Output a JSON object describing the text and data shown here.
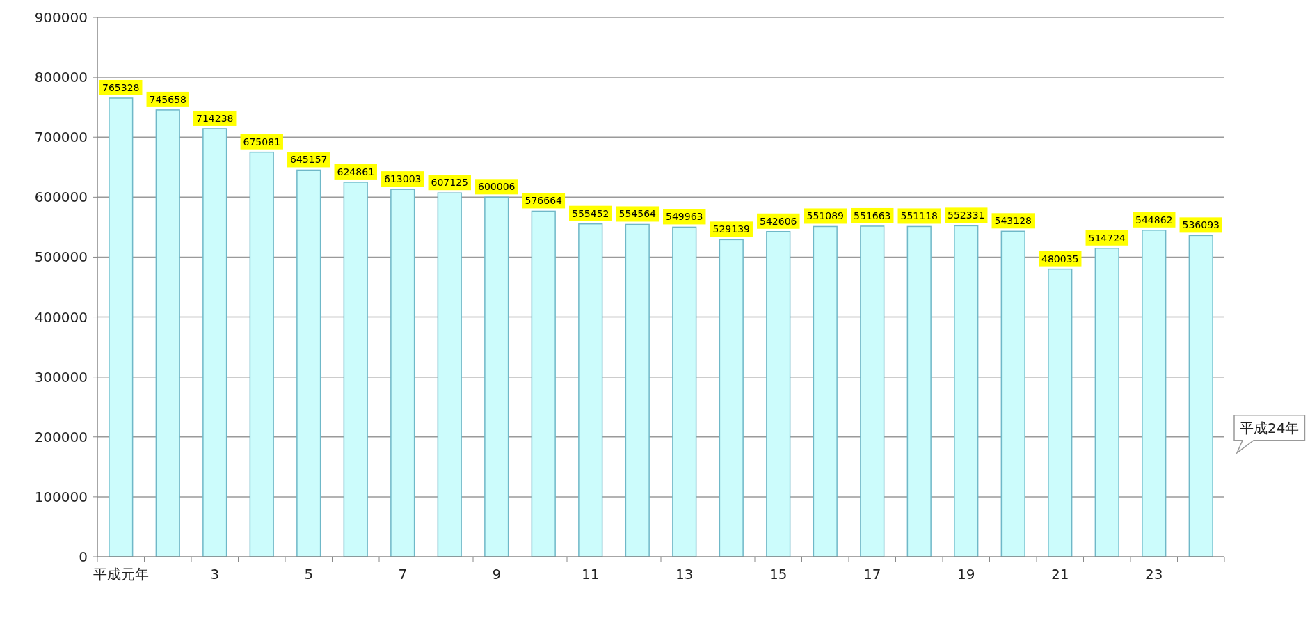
{
  "chart_data": {
    "type": "bar",
    "categories": [
      "平成元年",
      null,
      "3",
      null,
      "5",
      null,
      "7",
      null,
      "9",
      null,
      "11",
      null,
      "13",
      null,
      "15",
      null,
      "17",
      null,
      "19",
      null,
      "21",
      null,
      "23",
      null
    ],
    "values": [
      765328,
      745658,
      714238,
      675081,
      645157,
      624861,
      613003,
      607125,
      600006,
      576664,
      555452,
      554564,
      549963,
      529139,
      542606,
      551089,
      551663,
      551118,
      552331,
      543128,
      480035,
      514724,
      544862,
      536093
    ],
    "color": "#ccfcfc",
    "ylim": [
      0,
      900000
    ],
    "yticks": [
      0,
      100000,
      200000,
      300000,
      400000,
      500000,
      600000,
      700000,
      800000,
      900000
    ],
    "grid": "y",
    "data_labels": true,
    "annotations": [
      "平成24年"
    ]
  }
}
